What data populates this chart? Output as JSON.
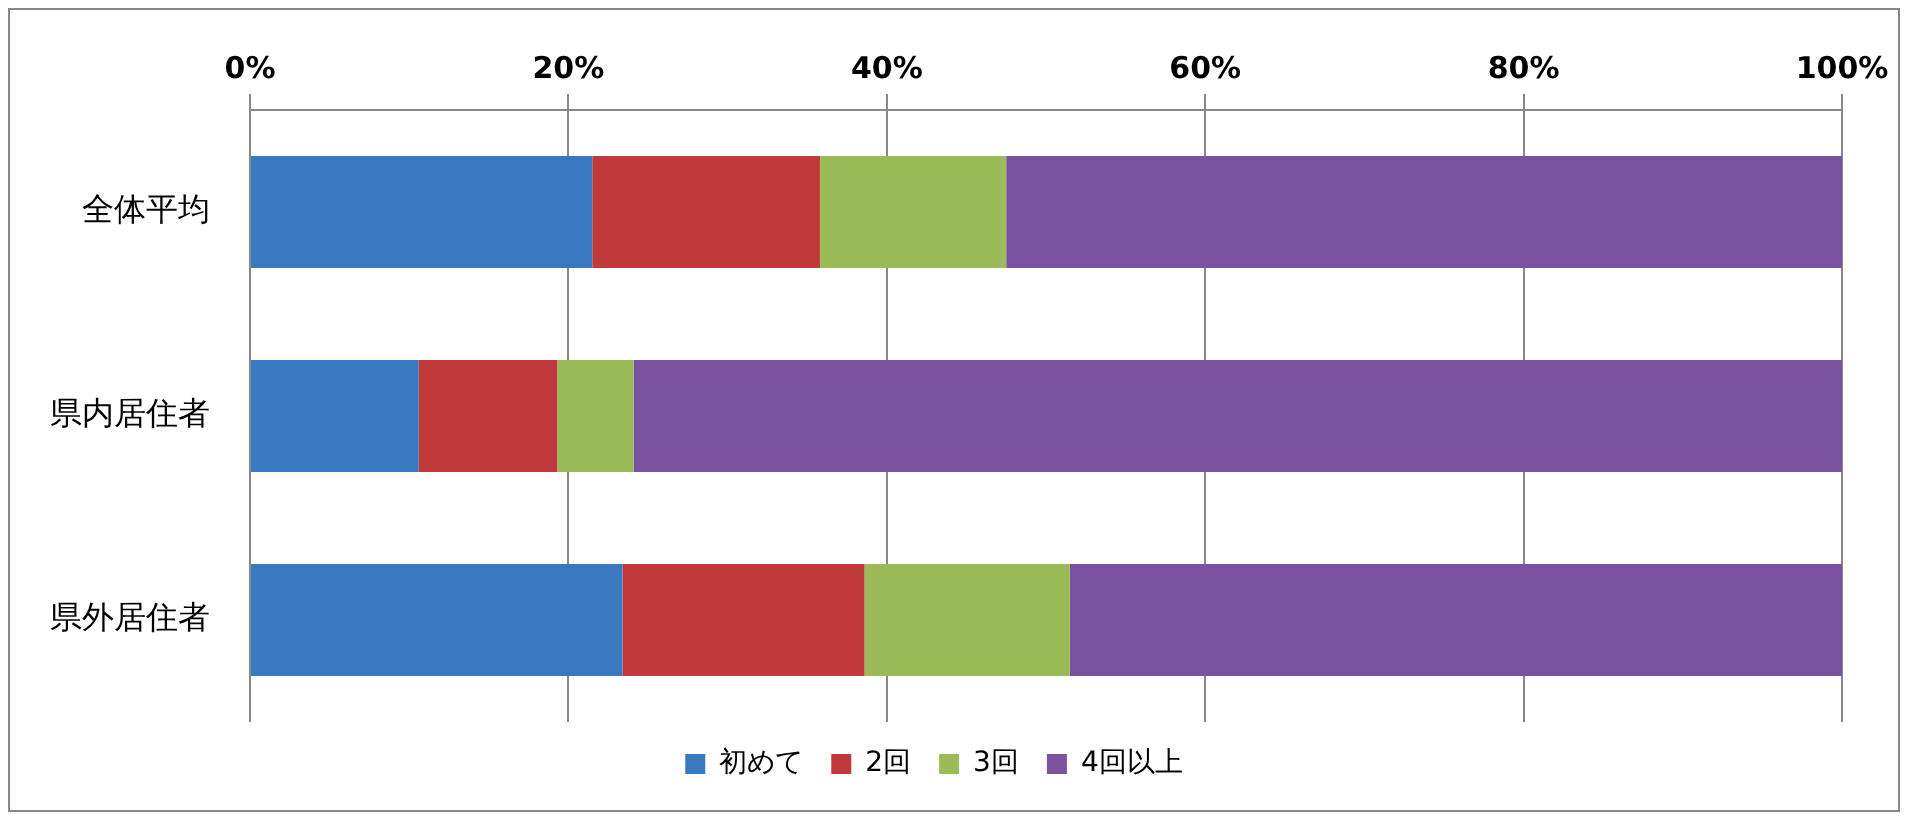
{
  "chart_data": {
    "type": "bar",
    "orientation": "horizontal",
    "stacked": true,
    "categories": [
      "全体平均",
      "県内居住者",
      "県外居住者"
    ],
    "series": [
      {
        "name": "初めて",
        "color": "#3a78c2",
        "values": [
          21.5,
          10.6,
          23.4
        ]
      },
      {
        "name": "2回",
        "color": "#c0393b",
        "values": [
          14.3,
          8.7,
          15.2
        ]
      },
      {
        "name": "3回",
        "color": "#9bbb59",
        "values": [
          11.7,
          4.8,
          12.9
        ]
      },
      {
        "name": "4回以上",
        "color": "#7952a0",
        "values": [
          52.5,
          75.9,
          48.5
        ]
      }
    ],
    "xlim": [
      0,
      100
    ],
    "xticks": [
      {
        "value": 0,
        "label": "0%"
      },
      {
        "value": 20,
        "label": "20%"
      },
      {
        "value": 40,
        "label": "40%"
      },
      {
        "value": 60,
        "label": "60%"
      },
      {
        "value": 80,
        "label": "80%"
      },
      {
        "value": 100,
        "label": "100%"
      }
    ],
    "grid": "x",
    "legend": "bottom"
  }
}
